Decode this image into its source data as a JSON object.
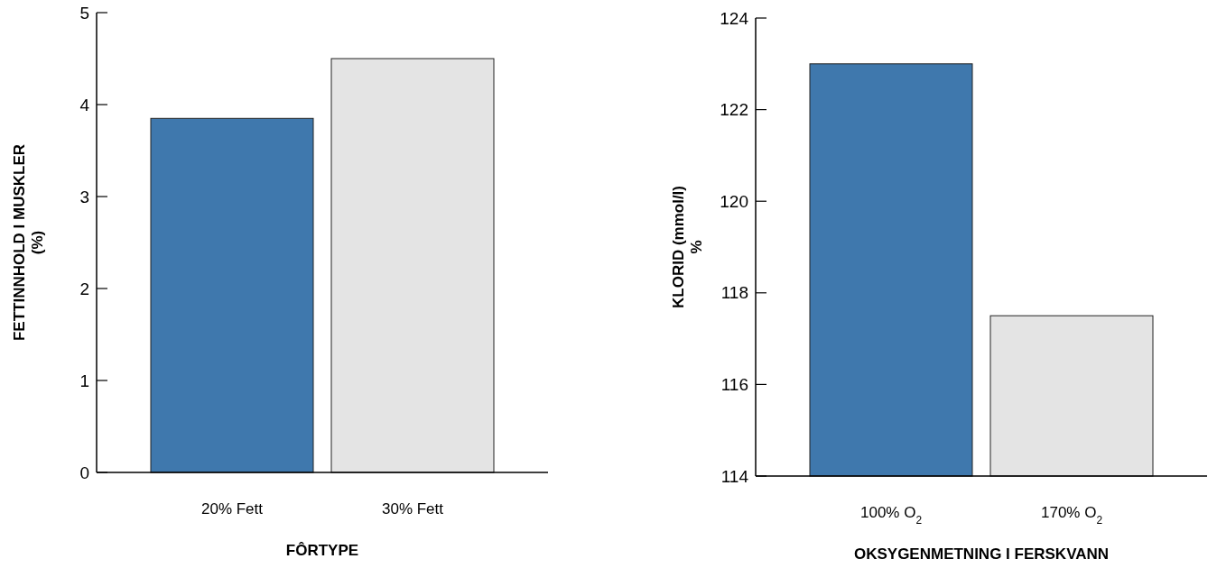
{
  "chart_data": [
    {
      "type": "bar",
      "categories": [
        "20% Fett",
        "30% Fett"
      ],
      "values": [
        3.85,
        4.5
      ],
      "colors": [
        "#3f78ad",
        "#e4e4e4"
      ],
      "ylim": [
        0,
        5
      ],
      "yticks": [
        0,
        1,
        2,
        3,
        4,
        5
      ],
      "xlabel": "FÔRTYPE",
      "ylabel": "FETTINNHOLD I MUSKLER\n(%)"
    },
    {
      "type": "bar",
      "categories": [
        "100% O$_{2}$",
        "170% O$_{2}$"
      ],
      "values": [
        123,
        117.5
      ],
      "colors": [
        "#3f78ad",
        "#e4e4e4"
      ],
      "ylim": [
        114,
        124
      ],
      "yticks": [
        114,
        116,
        118,
        120,
        122,
        124
      ],
      "xlabel": "OKSYGENMETNING I FERSKVANN",
      "ylabel": "KLORID (mmol/l)\n%"
    }
  ]
}
